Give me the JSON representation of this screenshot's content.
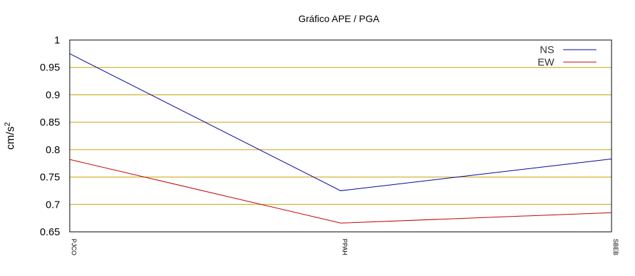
{
  "chart_data": {
    "type": "line",
    "title": "Gráfico  APE / PGA",
    "ylabel": "cm/s",
    "ylabel_superscript": "2",
    "xlabel": "",
    "categories": [
      "PJCO",
      "PPAH",
      "SBEB"
    ],
    "ylim": [
      0.65,
      1.0
    ],
    "yticks": [
      1,
      0.95,
      0.9,
      0.85,
      0.8,
      0.75,
      0.7,
      0.65
    ],
    "grid": true,
    "grid_color": "#c8a000",
    "legend_position": "top-right",
    "series": [
      {
        "name": "NS",
        "color": "#0000a0",
        "values": [
          0.975,
          0.725,
          0.783
        ]
      },
      {
        "name": "EW",
        "color": "#c00000",
        "values": [
          0.782,
          0.666,
          0.685
        ]
      }
    ]
  }
}
